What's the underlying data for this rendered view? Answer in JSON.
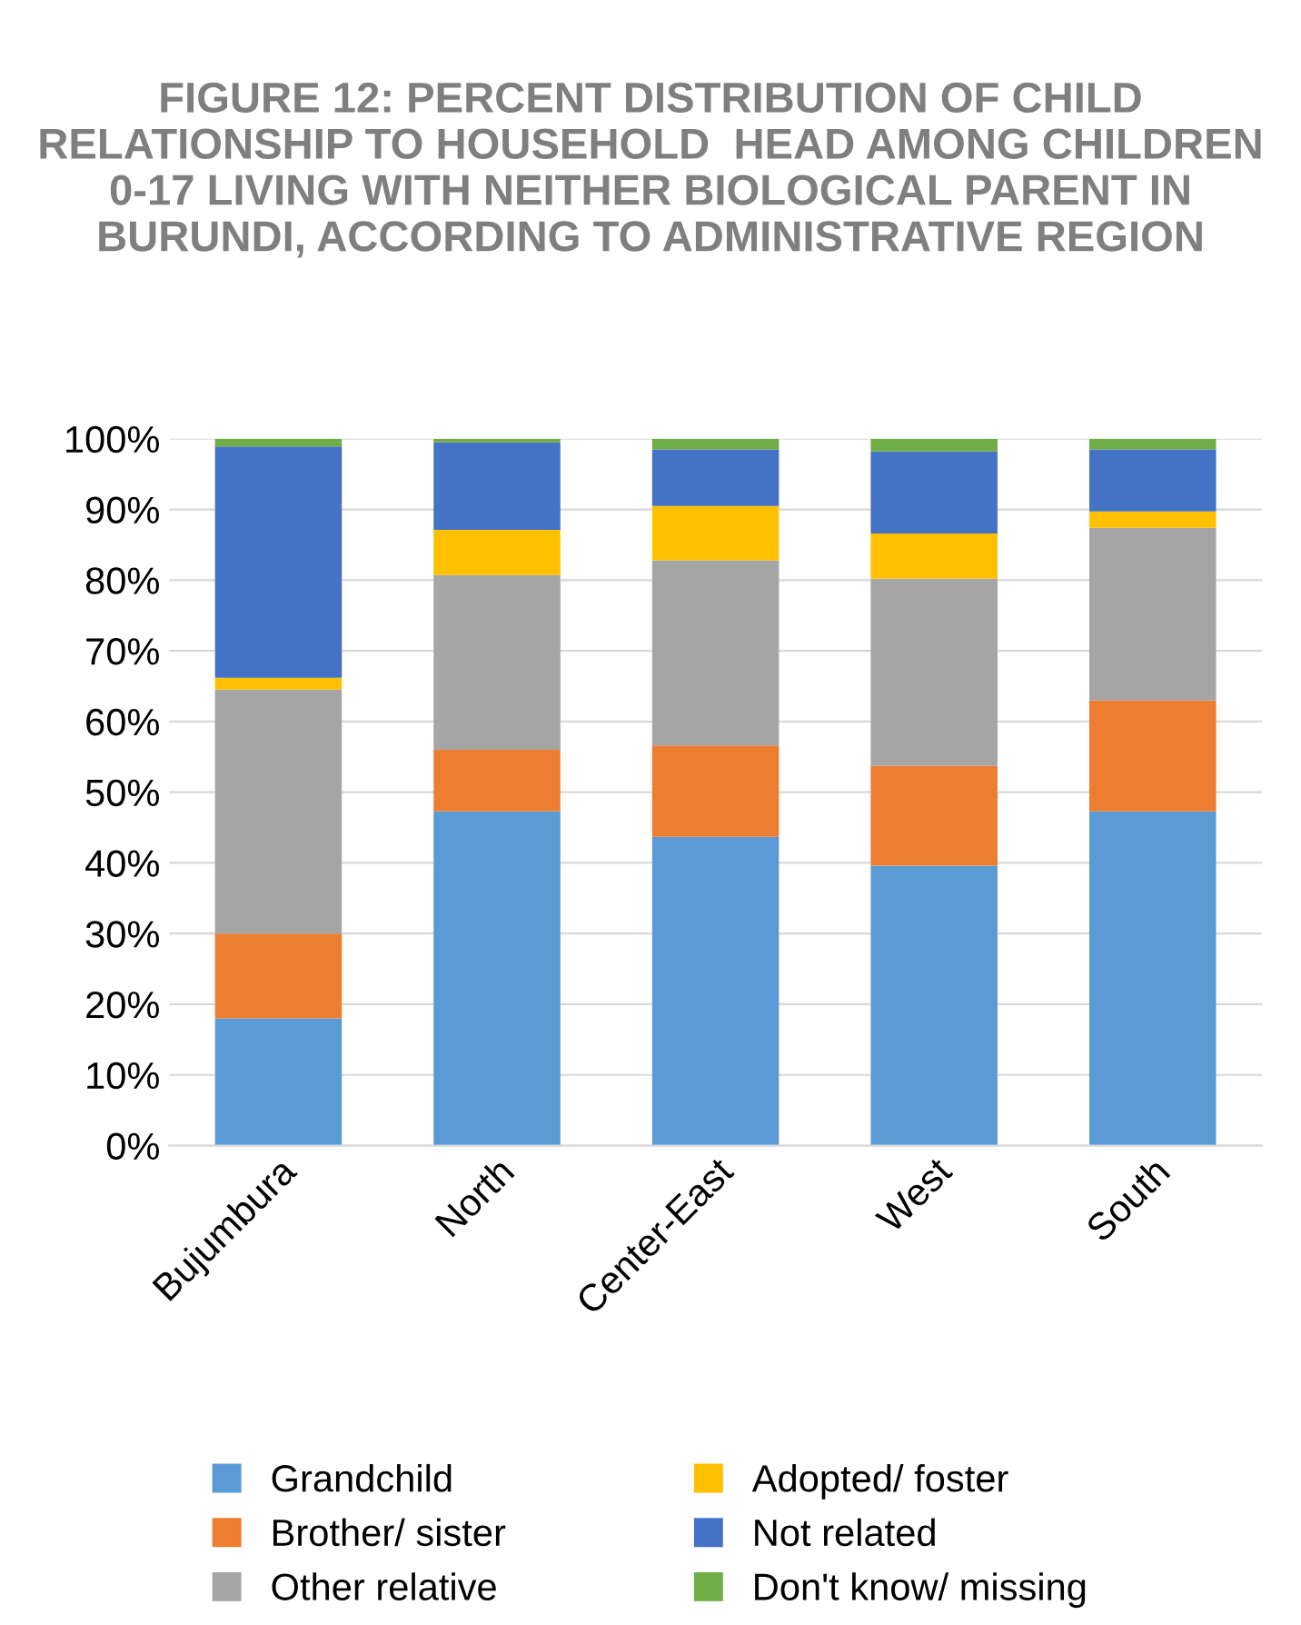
{
  "chart_data": {
    "type": "bar",
    "stacked": true,
    "title": "FIGURE 12: PERCENT DISTRIBUTION OF CHILD RELATIONSHIP TO HOUSEHOLD  HEAD AMONG CHILDREN 0-17 LIVING WITH NEITHER BIOLOGICAL PARENT IN BURUNDI, ACCORDING TO ADMINISTRATIVE REGION",
    "categories": [
      "Bujumbura",
      "North",
      "Center-East",
      "West",
      "South"
    ],
    "series": [
      {
        "name": "Grandchild",
        "color": "#5b9bd5",
        "values": [
          18.0,
          47.3,
          43.7,
          39.6,
          47.3
        ]
      },
      {
        "name": "Brother/ sister",
        "color": "#ed7d31",
        "values": [
          12.0,
          8.7,
          12.9,
          14.1,
          15.7
        ]
      },
      {
        "name": "Other relative",
        "color": "#a5a5a5",
        "values": [
          34.5,
          24.7,
          26.2,
          26.5,
          24.4
        ]
      },
      {
        "name": "Adopted/ foster",
        "color": "#ffc000",
        "values": [
          1.7,
          6.4,
          7.7,
          6.4,
          2.3
        ]
      },
      {
        "name": "Not related",
        "color": "#4472c4",
        "values": [
          32.7,
          12.4,
          8.0,
          11.6,
          8.8
        ]
      },
      {
        "name": "Don't know/ missing",
        "color": "#70ad47",
        "values": [
          1.1,
          0.5,
          1.5,
          1.8,
          1.5
        ]
      }
    ],
    "ylim": [
      0,
      100
    ],
    "yticks": [
      {
        "value": 0,
        "label": "0%"
      },
      {
        "value": 10,
        "label": "10%"
      },
      {
        "value": 20,
        "label": "20%"
      },
      {
        "value": 30,
        "label": "30%"
      },
      {
        "value": 40,
        "label": "40%"
      },
      {
        "value": 50,
        "label": "50%"
      },
      {
        "value": 60,
        "label": "60%"
      },
      {
        "value": 70,
        "label": "70%"
      },
      {
        "value": 80,
        "label": "80%"
      },
      {
        "value": 90,
        "label": "90%"
      },
      {
        "value": 100,
        "label": "100%"
      }
    ],
    "grid": "y",
    "legend": "bottom"
  }
}
